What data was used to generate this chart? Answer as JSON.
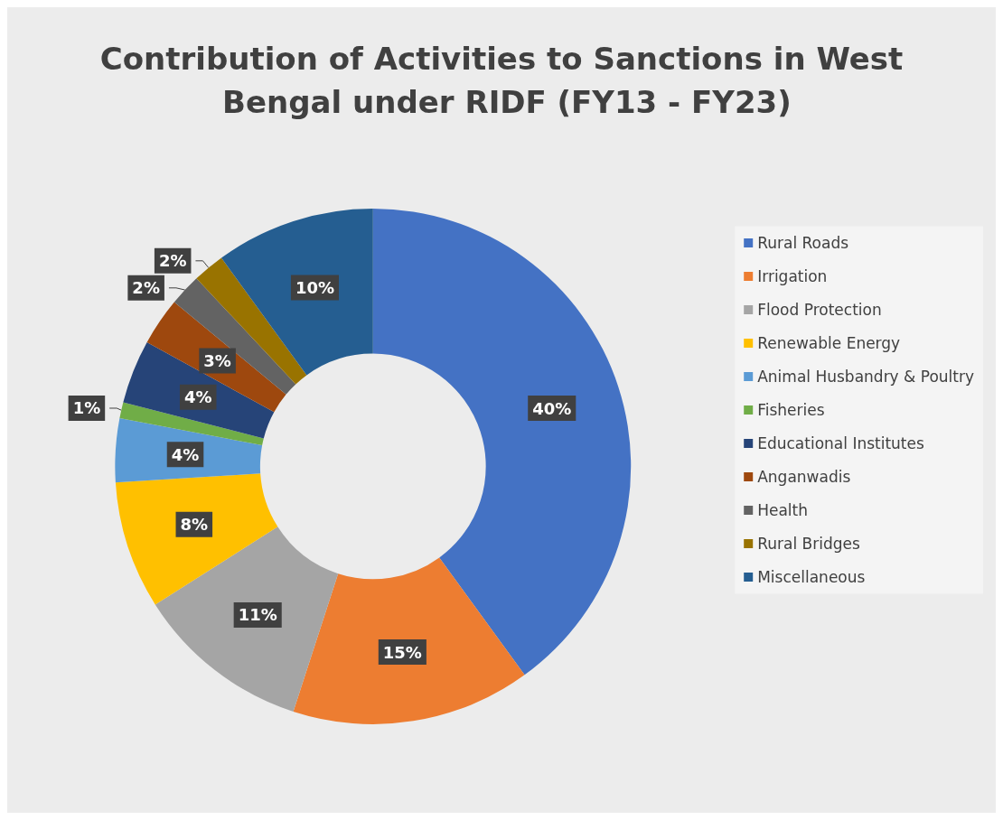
{
  "chart_data": {
    "type": "donut",
    "title": "Contribution of Activities to Sanctions in West Bengal under RIDF (FY13 - FY23)",
    "categories": [
      "Rural Roads",
      "Irrigation",
      "Flood Protection",
      "Renewable Energy",
      "Animal Husbandry & Poultry",
      "Fisheries",
      "Educational Institutes",
      "Anganwadis",
      "Health",
      "Rural Bridges",
      "Miscellaneous"
    ],
    "values": [
      40,
      15,
      11,
      8,
      4,
      1,
      4,
      3,
      2,
      2,
      10
    ],
    "value_labels": [
      "40%",
      "15%",
      "11%",
      "8%",
      "4%",
      "1%",
      "4%",
      "3%",
      "2%",
      "2%",
      "10%"
    ],
    "colors": [
      "#4472c4",
      "#ed7d31",
      "#a5a5a5",
      "#ffc000",
      "#5b9bd5",
      "#70ad47",
      "#264478",
      "#9e480e",
      "#636363",
      "#997300",
      "#255e91"
    ],
    "legend": "right"
  }
}
